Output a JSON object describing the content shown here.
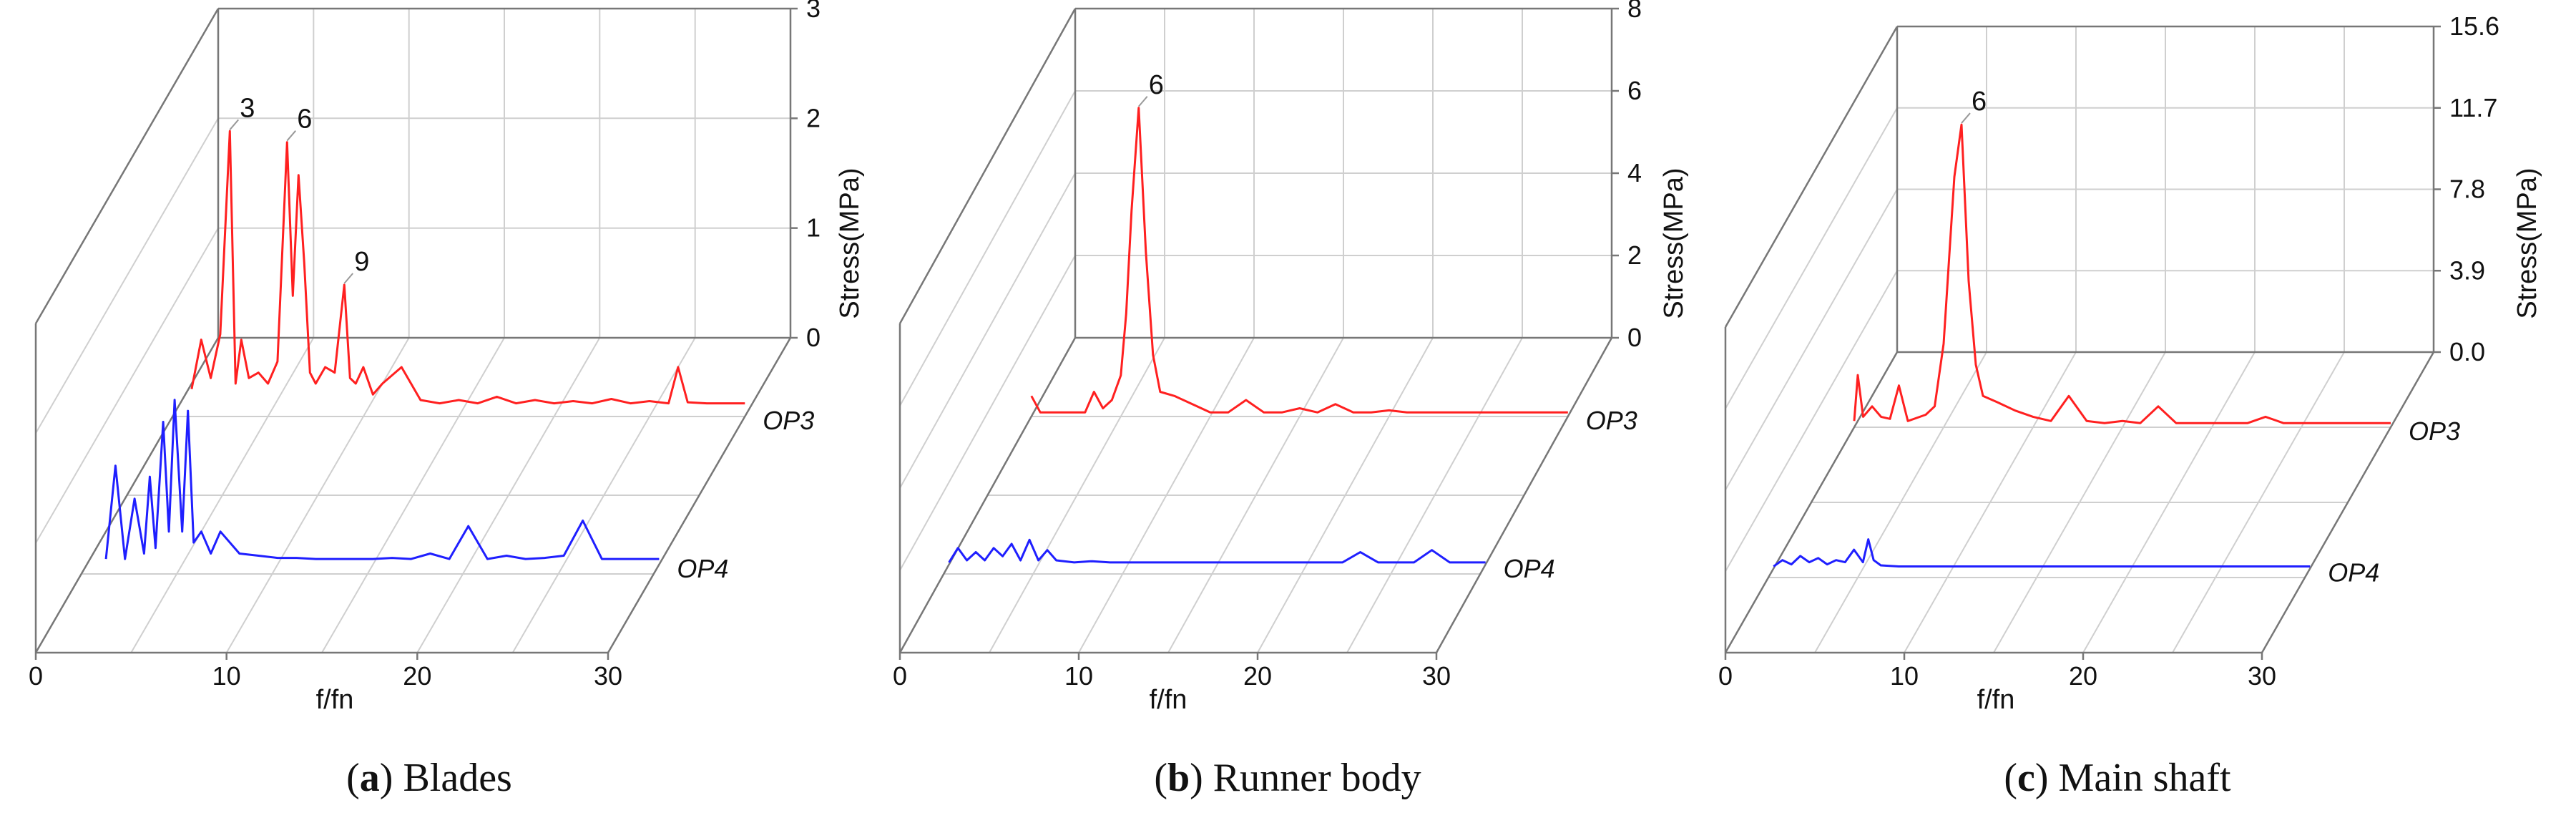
{
  "colors": {
    "OP3": "#ff2020",
    "OP4": "#1f1fff",
    "grid": "#cfcfcf",
    "frame": "#777777"
  },
  "chart_data": [
    {
      "type": "line",
      "caption_letter": "a",
      "caption_text": "Blades",
      "xlabel": "f/fn",
      "ylabel": "Stress(MPa)",
      "xlim": [
        0,
        30
      ],
      "xticks": [
        "0",
        "10",
        "20",
        "30"
      ],
      "ylim": [
        0,
        3
      ],
      "yticks": [
        "0",
        "1",
        "2",
        "3"
      ],
      "peak_labels": [
        {
          "text": "3",
          "x": 3
        },
        {
          "text": "6",
          "x": 6
        },
        {
          "text": "9",
          "x": 9
        }
      ],
      "series": [
        {
          "name": "OP3",
          "color": "#ff2020",
          "x": [
            1,
            1.5,
            2,
            2.5,
            3,
            3.3,
            3.6,
            4,
            4.5,
            5,
            5.5,
            6,
            6.3,
            6.6,
            6.9,
            7.2,
            7.5,
            8,
            8.5,
            9,
            9.3,
            9.6,
            10,
            10.5,
            11,
            12,
            13,
            14,
            15,
            16,
            17,
            18,
            19,
            20,
            21,
            22,
            23,
            24,
            25,
            26,
            26.5,
            27,
            28,
            29,
            30
          ],
          "y": [
            0.25,
            0.7,
            0.35,
            0.75,
            2.6,
            0.3,
            0.7,
            0.35,
            0.4,
            0.3,
            0.5,
            2.5,
            1.1,
            2.2,
            1.4,
            0.4,
            0.3,
            0.45,
            0.4,
            1.2,
            0.35,
            0.3,
            0.45,
            0.2,
            0.3,
            0.45,
            0.15,
            0.12,
            0.15,
            0.12,
            0.18,
            0.12,
            0.15,
            0.12,
            0.14,
            0.12,
            0.16,
            0.12,
            0.14,
            0.12,
            0.45,
            0.13,
            0.12,
            0.12,
            0.12
          ]
        },
        {
          "name": "OP4",
          "color": "#1f1fff",
          "x": [
            1,
            1.5,
            2,
            2.5,
            3,
            3.3,
            3.6,
            4,
            4.3,
            4.6,
            5,
            5.3,
            5.6,
            6,
            6.5,
            7,
            8,
            9,
            10,
            11,
            12,
            13,
            14,
            15,
            16,
            17,
            18,
            19,
            20,
            21,
            22,
            23,
            24,
            25,
            26,
            27,
            28,
            29,
            30
          ],
          "y": [
            0.05,
            0.9,
            0.05,
            0.6,
            0.1,
            0.8,
            0.15,
            1.3,
            0.3,
            1.5,
            0.3,
            1.4,
            0.2,
            0.3,
            0.1,
            0.3,
            0.1,
            0.08,
            0.06,
            0.06,
            0.05,
            0.05,
            0.05,
            0.05,
            0.06,
            0.05,
            0.1,
            0.05,
            0.35,
            0.05,
            0.08,
            0.05,
            0.06,
            0.08,
            0.4,
            0.05,
            0.05,
            0.05,
            0.05
          ]
        }
      ]
    },
    {
      "type": "line",
      "caption_letter": "b",
      "caption_text": "Runner body",
      "xlabel": "f/fn",
      "ylabel": "Stress(MPa)",
      "xlim": [
        0,
        30
      ],
      "xticks": [
        "0",
        "10",
        "20",
        "30"
      ],
      "ylim": [
        0,
        8
      ],
      "yticks": [
        "0",
        "2",
        "4",
        "6",
        "8"
      ],
      "peak_labels": [
        {
          "text": "6",
          "x": 6
        }
      ],
      "series": [
        {
          "name": "OP3",
          "color": "#ff2020",
          "x": [
            0,
            0.5,
            1,
            2,
            3,
            3.5,
            4,
            4.5,
            5,
            5.3,
            5.6,
            6,
            6.4,
            6.8,
            7.2,
            8,
            9,
            10,
            11,
            12,
            13,
            14,
            15,
            16,
            17,
            18,
            19,
            20,
            21,
            22,
            23,
            24,
            25,
            26,
            27,
            28,
            29,
            30
          ],
          "y": [
            0.5,
            0.1,
            0.1,
            0.1,
            0.1,
            0.6,
            0.2,
            0.4,
            1.0,
            2.5,
            5.0,
            7.5,
            4.0,
            1.5,
            0.6,
            0.5,
            0.3,
            0.1,
            0.1,
            0.4,
            0.1,
            0.1,
            0.2,
            0.1,
            0.3,
            0.1,
            0.1,
            0.15,
            0.1,
            0.1,
            0.1,
            0.1,
            0.1,
            0.1,
            0.1,
            0.1,
            0.1,
            0.1
          ]
        },
        {
          "name": "OP4",
          "color": "#1f1fff",
          "x": [
            0,
            0.5,
            1,
            1.5,
            2,
            2.5,
            3,
            3.5,
            4,
            4.5,
            5,
            5.5,
            6,
            7,
            8,
            9,
            10,
            11,
            12,
            13,
            14,
            15,
            16,
            17,
            18,
            19,
            20,
            21,
            22,
            23,
            24,
            25,
            26,
            27,
            28,
            29,
            30
          ],
          "y": [
            0.05,
            0.4,
            0.1,
            0.3,
            0.1,
            0.4,
            0.2,
            0.5,
            0.1,
            0.6,
            0.1,
            0.35,
            0.1,
            0.05,
            0.08,
            0.05,
            0.05,
            0.05,
            0.05,
            0.05,
            0.05,
            0.05,
            0.05,
            0.05,
            0.05,
            0.05,
            0.05,
            0.05,
            0.05,
            0.3,
            0.05,
            0.05,
            0.05,
            0.35,
            0.05,
            0.05,
            0.05
          ]
        }
      ]
    },
    {
      "type": "line",
      "caption_letter": "c",
      "caption_text": "Main shaft",
      "xlabel": "f/fn",
      "ylabel": "Stress(MPa)",
      "xlim": [
        0,
        30
      ],
      "xticks": [
        "0",
        "10",
        "20",
        "30"
      ],
      "ylim": [
        0,
        15.6
      ],
      "yticks": [
        "0.0",
        "3.9",
        "7.8",
        "11.7",
        "15.6"
      ],
      "peak_labels": [
        {
          "text": "6",
          "x": 6
        }
      ],
      "series": [
        {
          "name": "OP3",
          "color": "#ff2020",
          "x": [
            0,
            0.2,
            0.5,
            1,
            1.5,
            2,
            2.5,
            3,
            4,
            4.5,
            5,
            5.3,
            5.6,
            6,
            6.4,
            6.8,
            7.2,
            8,
            9,
            10,
            11,
            12,
            13,
            14,
            15,
            16,
            17,
            18,
            19,
            20,
            21,
            22,
            23,
            24,
            25,
            26,
            27,
            28,
            29,
            30
          ],
          "y": [
            0.3,
            2.5,
            0.5,
            1.0,
            0.5,
            0.4,
            2.0,
            0.3,
            0.6,
            1.0,
            4.0,
            8.0,
            12.0,
            14.5,
            7.0,
            3.0,
            1.5,
            1.2,
            0.8,
            0.5,
            0.3,
            1.5,
            0.3,
            0.2,
            0.3,
            0.2,
            1.0,
            0.2,
            0.2,
            0.2,
            0.2,
            0.2,
            0.5,
            0.2,
            0.2,
            0.2,
            0.2,
            0.2,
            0.2,
            0.2
          ]
        },
        {
          "name": "OP4",
          "color": "#1f1fff",
          "x": [
            0,
            0.5,
            1,
            1.5,
            2,
            2.5,
            3,
            3.5,
            4,
            4.5,
            5,
            5.3,
            5.6,
            6,
            7,
            8,
            9,
            10,
            11,
            12,
            13,
            14,
            15,
            16,
            17,
            18,
            19,
            20,
            21,
            22,
            23,
            24,
            25,
            26,
            27,
            28,
            29,
            30
          ],
          "y": [
            0.1,
            0.4,
            0.2,
            0.6,
            0.3,
            0.5,
            0.2,
            0.4,
            0.3,
            0.9,
            0.3,
            1.4,
            0.4,
            0.15,
            0.1,
            0.1,
            0.1,
            0.1,
            0.1,
            0.1,
            0.1,
            0.1,
            0.1,
            0.1,
            0.1,
            0.1,
            0.1,
            0.1,
            0.1,
            0.1,
            0.1,
            0.1,
            0.1,
            0.1,
            0.1,
            0.1,
            0.1,
            0.1
          ]
        }
      ]
    }
  ]
}
